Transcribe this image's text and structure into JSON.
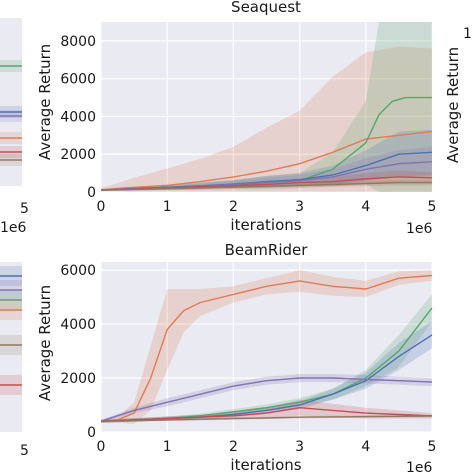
{
  "chart_data": [
    {
      "type": "line",
      "title": "Seaquest",
      "xlabel": "iterations",
      "ylabel": "Average Return",
      "x_multiplier": "1e6",
      "xlim": [
        0,
        5000000
      ],
      "ylim": [
        0,
        9000
      ],
      "xticks": [
        "0",
        "1",
        "2",
        "3",
        "4",
        "5"
      ],
      "yticks": [
        "0",
        "2000",
        "4000",
        "6000",
        "8000"
      ],
      "grid": true,
      "series": [
        {
          "color": "#e07b54",
          "x": [
            0,
            0.5,
            1,
            1.5,
            2,
            2.5,
            3,
            3.5,
            4,
            4.5,
            5
          ],
          "values": [
            120,
            250,
            350,
            550,
            800,
            1100,
            1500,
            2100,
            2800,
            3000,
            3200
          ],
          "band": [
            80,
            500,
            900,
            1200,
            1600,
            2300,
            2800,
            4000,
            4600,
            4700,
            4400
          ]
        },
        {
          "color": "#55a868",
          "x": [
            0,
            0.5,
            1,
            1.5,
            2,
            2.5,
            3,
            3.5,
            4,
            4.2,
            4.4,
            4.6,
            5
          ],
          "values": [
            100,
            180,
            250,
            320,
            400,
            500,
            600,
            1200,
            2600,
            4100,
            4800,
            5000,
            5000
          ],
          "band": [
            50,
            100,
            150,
            200,
            250,
            350,
            400,
            900,
            2200,
            6000,
            8800,
            8800,
            8800
          ]
        },
        {
          "color": "#4c72b0",
          "x": [
            0,
            0.5,
            1,
            1.5,
            2,
            2.5,
            3,
            3.5,
            4,
            4.5,
            5
          ],
          "values": [
            100,
            180,
            250,
            320,
            420,
            550,
            650,
            900,
            1400,
            2000,
            2100
          ],
          "band": [
            50,
            80,
            120,
            160,
            200,
            300,
            350,
            500,
            800,
            1200,
            1200
          ]
        },
        {
          "color": "#8172b2",
          "x": [
            0,
            0.5,
            1,
            1.5,
            2,
            2.5,
            3,
            3.5,
            4,
            4.5,
            5
          ],
          "values": [
            100,
            160,
            220,
            300,
            400,
            500,
            600,
            800,
            1200,
            1500,
            1600
          ],
          "band": [
            50,
            80,
            100,
            150,
            200,
            250,
            300,
            400,
            600,
            700,
            800
          ]
        },
        {
          "color": "#c44e52",
          "x": [
            0,
            0.5,
            1,
            1.5,
            2,
            2.5,
            3,
            3.5,
            4,
            4.5,
            5
          ],
          "values": [
            100,
            150,
            200,
            280,
            330,
            400,
            500,
            550,
            700,
            800,
            750
          ],
          "band": [
            40,
            60,
            80,
            100,
            120,
            150,
            200,
            250,
            300,
            350,
            300
          ]
        },
        {
          "color": "#937860",
          "x": [
            0,
            0.5,
            1,
            1.5,
            2,
            2.5,
            3,
            3.5,
            4,
            4.5,
            5
          ],
          "values": [
            100,
            140,
            180,
            220,
            260,
            300,
            350,
            400,
            450,
            500,
            500
          ],
          "band": [
            40,
            50,
            60,
            70,
            80,
            90,
            100,
            120,
            140,
            150,
            150
          ]
        }
      ]
    },
    {
      "type": "line",
      "title": "BeamRider",
      "xlabel": "iterations",
      "ylabel": "Average Return",
      "x_multiplier": "1e6",
      "xlim": [
        0,
        5000000
      ],
      "ylim": [
        0,
        6300
      ],
      "xticks": [
        "0",
        "1",
        "2",
        "3",
        "4",
        "5"
      ],
      "yticks": [
        "0",
        "2000",
        "4000",
        "6000"
      ],
      "grid": true,
      "series": [
        {
          "color": "#e07b54",
          "x": [
            0,
            0.25,
            0.5,
            0.75,
            1,
            1.25,
            1.5,
            2,
            2.5,
            3,
            3.5,
            4,
            4.5,
            5
          ],
          "values": [
            380,
            450,
            700,
            2000,
            3800,
            4500,
            4800,
            5100,
            5400,
            5600,
            5400,
            5300,
            5700,
            5800
          ],
          "band": [
            50,
            100,
            400,
            1200,
            1500,
            800,
            500,
            300,
            300,
            400,
            350,
            300,
            250,
            200
          ]
        },
        {
          "color": "#55a868",
          "x": [
            0,
            0.5,
            1,
            1.5,
            2,
            2.5,
            3,
            3.5,
            4,
            4.5,
            5
          ],
          "values": [
            400,
            450,
            500,
            600,
            750,
            900,
            1100,
            1400,
            2000,
            3000,
            4600
          ],
          "band": [
            50,
            60,
            70,
            80,
            100,
            120,
            150,
            200,
            300,
            600,
            500
          ]
        },
        {
          "color": "#4c72b0",
          "x": [
            0,
            0.5,
            1,
            1.5,
            2,
            2.5,
            3,
            3.5,
            4,
            4.5,
            5
          ],
          "values": [
            400,
            450,
            500,
            550,
            650,
            800,
            1000,
            1400,
            1900,
            2800,
            3600
          ],
          "band": [
            50,
            60,
            70,
            80,
            100,
            120,
            150,
            200,
            300,
            500,
            500
          ]
        },
        {
          "color": "#8172b2",
          "x": [
            0,
            0.5,
            1,
            1.5,
            2,
            2.5,
            3,
            3.5,
            4,
            4.5,
            5
          ],
          "values": [
            400,
            800,
            1100,
            1400,
            1700,
            1900,
            2000,
            2000,
            1950,
            1900,
            1850
          ],
          "band": [
            50,
            100,
            150,
            150,
            150,
            150,
            150,
            150,
            150,
            150,
            150
          ]
        },
        {
          "color": "#c44e52",
          "x": [
            0,
            0.5,
            1,
            1.5,
            2,
            2.5,
            3,
            3.5,
            4,
            4.5,
            5
          ],
          "values": [
            400,
            450,
            500,
            550,
            600,
            700,
            900,
            800,
            700,
            650,
            600
          ],
          "band": [
            50,
            60,
            80,
            100,
            120,
            200,
            300,
            250,
            200,
            150,
            100
          ]
        },
        {
          "color": "#937860",
          "x": [
            0,
            0.5,
            1,
            1.5,
            2,
            2.5,
            3,
            3.5,
            4,
            4.5,
            5
          ],
          "values": [
            400,
            420,
            450,
            470,
            500,
            520,
            550,
            560,
            570,
            580,
            590
          ],
          "band": [
            40,
            40,
            40,
            40,
            40,
            40,
            40,
            40,
            40,
            40,
            40
          ]
        }
      ]
    }
  ],
  "left_fragment": {
    "top_xtick": "5",
    "top_xmultiplier": "1e6",
    "bottom_xtick": "5",
    "colors": [
      "#55a868",
      "#4c72b0",
      "#8172b2",
      "#e07b54",
      "#c44e52",
      "#937860"
    ]
  },
  "right_fragment": {
    "top_ytick": "1"
  }
}
